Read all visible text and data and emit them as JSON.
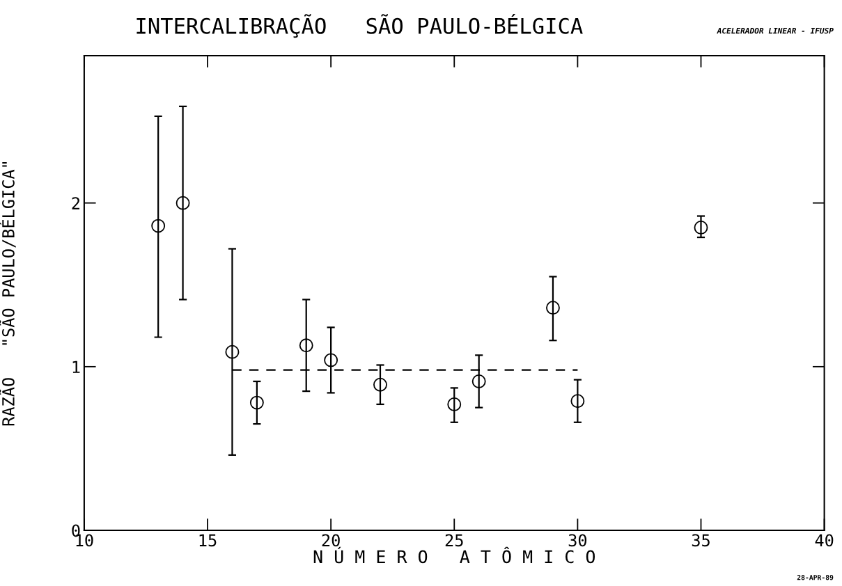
{
  "chart_data": {
    "type": "scatter",
    "title": "INTERCALIBRAÇÃO   SÃO PAULO-BÉLGICA",
    "xlabel": "N Ú M E R O   A T Ô M I C O",
    "ylabel": "RAZÃO   \"SÃO PAULO/BÉLGICA\"",
    "annotations": [
      "ACELERADOR LINEAR - IFUSP",
      "28-APR-89"
    ],
    "xlim": [
      10,
      40
    ],
    "xticks": [
      10,
      15,
      20,
      25,
      30,
      35,
      40
    ],
    "ylim": [
      0,
      2.9
    ],
    "yticks": [
      0,
      1,
      2
    ],
    "grid": false,
    "series": [
      {
        "marker": "circle",
        "color": "#000000",
        "x": [
          13,
          14,
          16,
          17,
          19,
          20,
          22,
          25,
          26,
          29,
          30,
          35
        ],
        "values": [
          1.86,
          2.0,
          1.09,
          0.78,
          1.13,
          1.04,
          0.89,
          0.77,
          0.91,
          1.36,
          0.79,
          1.85
        ],
        "errors": [
          [
            1.18,
            2.53
          ],
          [
            1.41,
            2.59
          ],
          [
            0.46,
            1.72
          ],
          [
            0.65,
            0.91
          ],
          [
            0.85,
            1.41
          ],
          [
            0.84,
            1.24
          ],
          [
            0.77,
            1.01
          ],
          [
            0.66,
            0.87
          ],
          [
            0.75,
            1.07
          ],
          [
            1.16,
            1.55
          ],
          [
            0.66,
            0.92
          ],
          [
            1.79,
            1.92
          ]
        ]
      },
      {
        "type": "line",
        "color": "#000000",
        "line_style": "dashed",
        "x": [
          16,
          30
        ],
        "values": [
          0.98,
          0.98
        ]
      }
    ]
  }
}
